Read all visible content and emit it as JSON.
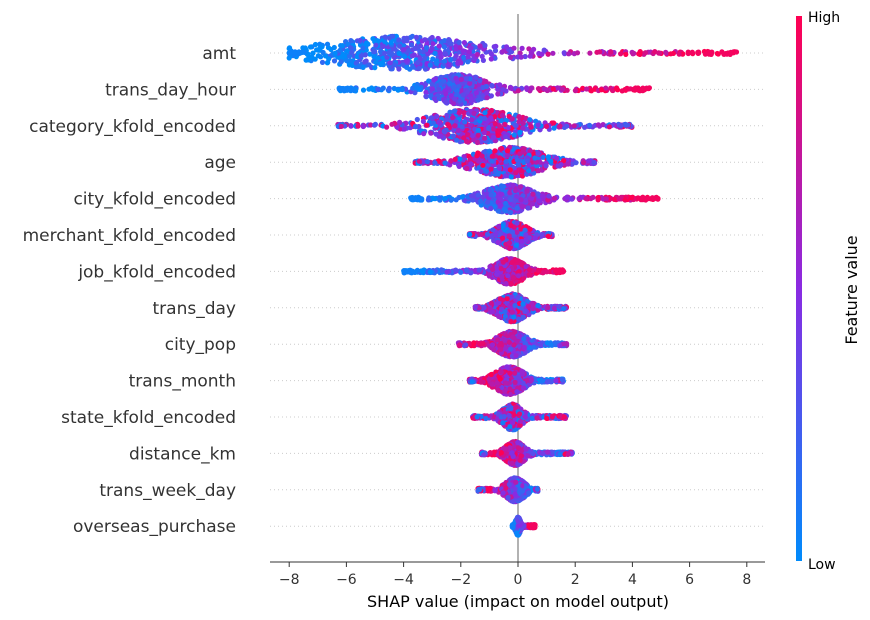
{
  "chart_data": {
    "type": "scatter",
    "subtype": "shap-beeswarm-summary",
    "xlabel": "SHAP value (impact on model output)",
    "xlim": [
      -8.7,
      8.7
    ],
    "xticks": [
      -8,
      -6,
      -4,
      -2,
      0,
      2,
      4,
      6,
      8
    ],
    "colorbar": {
      "label": "Feature value",
      "high": "High",
      "low": "Low",
      "low_color": "#008bfb",
      "mid_color": "#8a2be2",
      "high_color": "#ff0052"
    },
    "features": [
      {
        "name": "amt",
        "min": -8.0,
        "max": 7.7,
        "mode": -4.0,
        "spread": 1.6,
        "dense_half_h": 17,
        "color_trend": "high-right"
      },
      {
        "name": "trans_day_hour",
        "min": -6.3,
        "max": 4.6,
        "mode": -2.1,
        "spread": 0.6,
        "dense_half_h": 15,
        "color_trend": "high-right"
      },
      {
        "name": "category_kfold_encoded",
        "min": -6.3,
        "max": 4.0,
        "mode": -1.5,
        "spread": 0.9,
        "dense_half_h": 17,
        "color_trend": "mixed"
      },
      {
        "name": "age",
        "min": -3.6,
        "max": 2.7,
        "mode": -0.3,
        "spread": 0.7,
        "dense_half_h": 15,
        "color_trend": "mixed"
      },
      {
        "name": "city_kfold_encoded",
        "min": -3.8,
        "max": 4.9,
        "mode": -0.3,
        "spread": 0.5,
        "dense_half_h": 14,
        "color_trend": "high-right"
      },
      {
        "name": "merchant_kfold_encoded",
        "min": -1.7,
        "max": 1.2,
        "mode": -0.2,
        "spread": 0.3,
        "dense_half_h": 14,
        "color_trend": "mixed"
      },
      {
        "name": "job_kfold_encoded",
        "min": -4.0,
        "max": 1.6,
        "mode": -0.3,
        "spread": 0.3,
        "dense_half_h": 13,
        "color_trend": "high-right"
      },
      {
        "name": "trans_day",
        "min": -1.5,
        "max": 1.7,
        "mode": -0.2,
        "spread": 0.3,
        "dense_half_h": 14,
        "color_trend": "mixed"
      },
      {
        "name": "city_pop",
        "min": -2.1,
        "max": 1.7,
        "mode": -0.2,
        "spread": 0.3,
        "dense_half_h": 13,
        "color_trend": "low-right"
      },
      {
        "name": "trans_month",
        "min": -1.7,
        "max": 1.6,
        "mode": -0.3,
        "spread": 0.3,
        "dense_half_h": 14,
        "color_trend": "high-left"
      },
      {
        "name": "state_kfold_encoded",
        "min": -1.6,
        "max": 1.7,
        "mode": -0.2,
        "spread": 0.2,
        "dense_half_h": 13,
        "color_trend": "mixed"
      },
      {
        "name": "distance_km",
        "min": -1.3,
        "max": 1.9,
        "mode": -0.1,
        "spread": 0.2,
        "dense_half_h": 12,
        "color_trend": "low-right"
      },
      {
        "name": "trans_week_day",
        "min": -1.4,
        "max": 0.7,
        "mode": -0.1,
        "spread": 0.2,
        "dense_half_h": 12,
        "color_trend": "high-left"
      },
      {
        "name": "overseas_purchase",
        "min": -0.2,
        "max": 0.6,
        "mode": 0.0,
        "spread": 0.05,
        "dense_half_h": 9,
        "color_trend": "high-right"
      }
    ]
  }
}
